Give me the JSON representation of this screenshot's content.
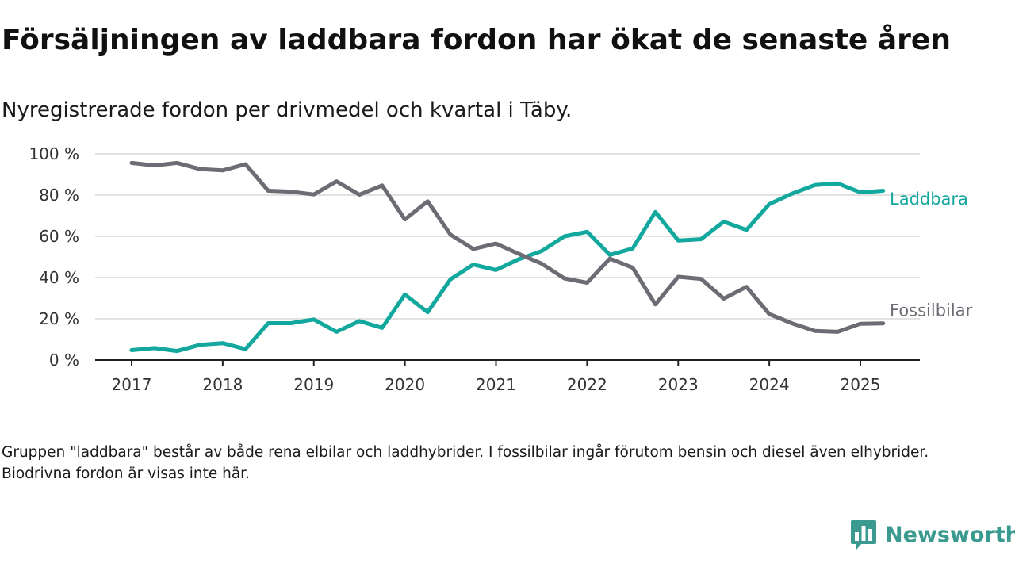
{
  "title": "Försäljningen av laddbara fordon har ökat de senaste åren",
  "subtitle": "Nyregistrerade fordon per drivmedel och kvartal i Täby.",
  "footnote": "Gruppen \"laddbara\" består av både rena elbilar och laddhybrider. I fossilbilar ingår förutom bensin och diesel även elhybrider. Biodrivna fordon är visas inte här.",
  "brand": {
    "name": "Newsworthy",
    "icon": "newsworthy-logo-icon",
    "color": "#3a9a8f"
  },
  "chart_data": {
    "type": "line",
    "title": "Försäljningen av laddbara fordon har ökat de senaste åren",
    "subtitle": "Nyregistrerade fordon per drivmedel och kvartal i Täby.",
    "xlabel": "",
    "ylabel": "",
    "ylim": [
      0,
      100
    ],
    "xlim": [
      2017,
      2025.75
    ],
    "grid": true,
    "legend": "direct labels at line ends (right)",
    "x_ticks": [
      2017,
      2018,
      2019,
      2020,
      2021,
      2022,
      2023,
      2024,
      2025
    ],
    "x_tick_labels": [
      "2017",
      "2018",
      "2019",
      "2020",
      "2021",
      "2022",
      "2023",
      "2024",
      "2025"
    ],
    "y_ticks": [
      0,
      20,
      40,
      60,
      80,
      100
    ],
    "y_tick_labels": [
      "0 %",
      "20 %",
      "40 %",
      "60 %",
      "80 %",
      "100 %"
    ],
    "x": [
      2017.0,
      2017.25,
      2017.5,
      2017.75,
      2018.0,
      2018.25,
      2018.5,
      2018.75,
      2019.0,
      2019.25,
      2019.5,
      2019.75,
      2020.0,
      2020.25,
      2020.5,
      2020.75,
      2021.0,
      2021.25,
      2021.5,
      2021.75,
      2022.0,
      2022.25,
      2022.5,
      2022.75,
      2023.0,
      2023.25,
      2023.5,
      2023.75,
      2024.0,
      2024.25,
      2024.5,
      2024.75,
      2025.0,
      2025.25
    ],
    "series": [
      {
        "name": "Laddbara",
        "color": "#13a89e",
        "values": [
          4.8,
          5.8,
          4.4,
          7.4,
          8.2,
          5.3,
          17.9,
          17.9,
          19.7,
          13.7,
          18.9,
          15.6,
          31.8,
          23.2,
          39.2,
          46.3,
          43.7,
          48.9,
          52.8,
          60.0,
          62.2,
          51.0,
          54.1,
          71.8,
          58.0,
          58.6,
          67.1,
          63.1,
          75.6,
          80.7,
          84.9,
          85.7,
          81.3,
          82.1
        ]
      },
      {
        "name": "Fossilbilar",
        "color": "#6d6c75",
        "values": [
          95.6,
          94.4,
          95.6,
          92.6,
          92.0,
          95.0,
          82.1,
          81.7,
          80.3,
          86.7,
          80.2,
          84.7,
          68.2,
          77.0,
          60.8,
          53.9,
          56.5,
          51.5,
          46.8,
          39.6,
          37.5,
          49.2,
          44.8,
          27.0,
          40.4,
          39.4,
          29.8,
          35.5,
          22.3,
          17.8,
          14.1,
          13.7,
          17.6,
          17.8
        ]
      }
    ]
  }
}
